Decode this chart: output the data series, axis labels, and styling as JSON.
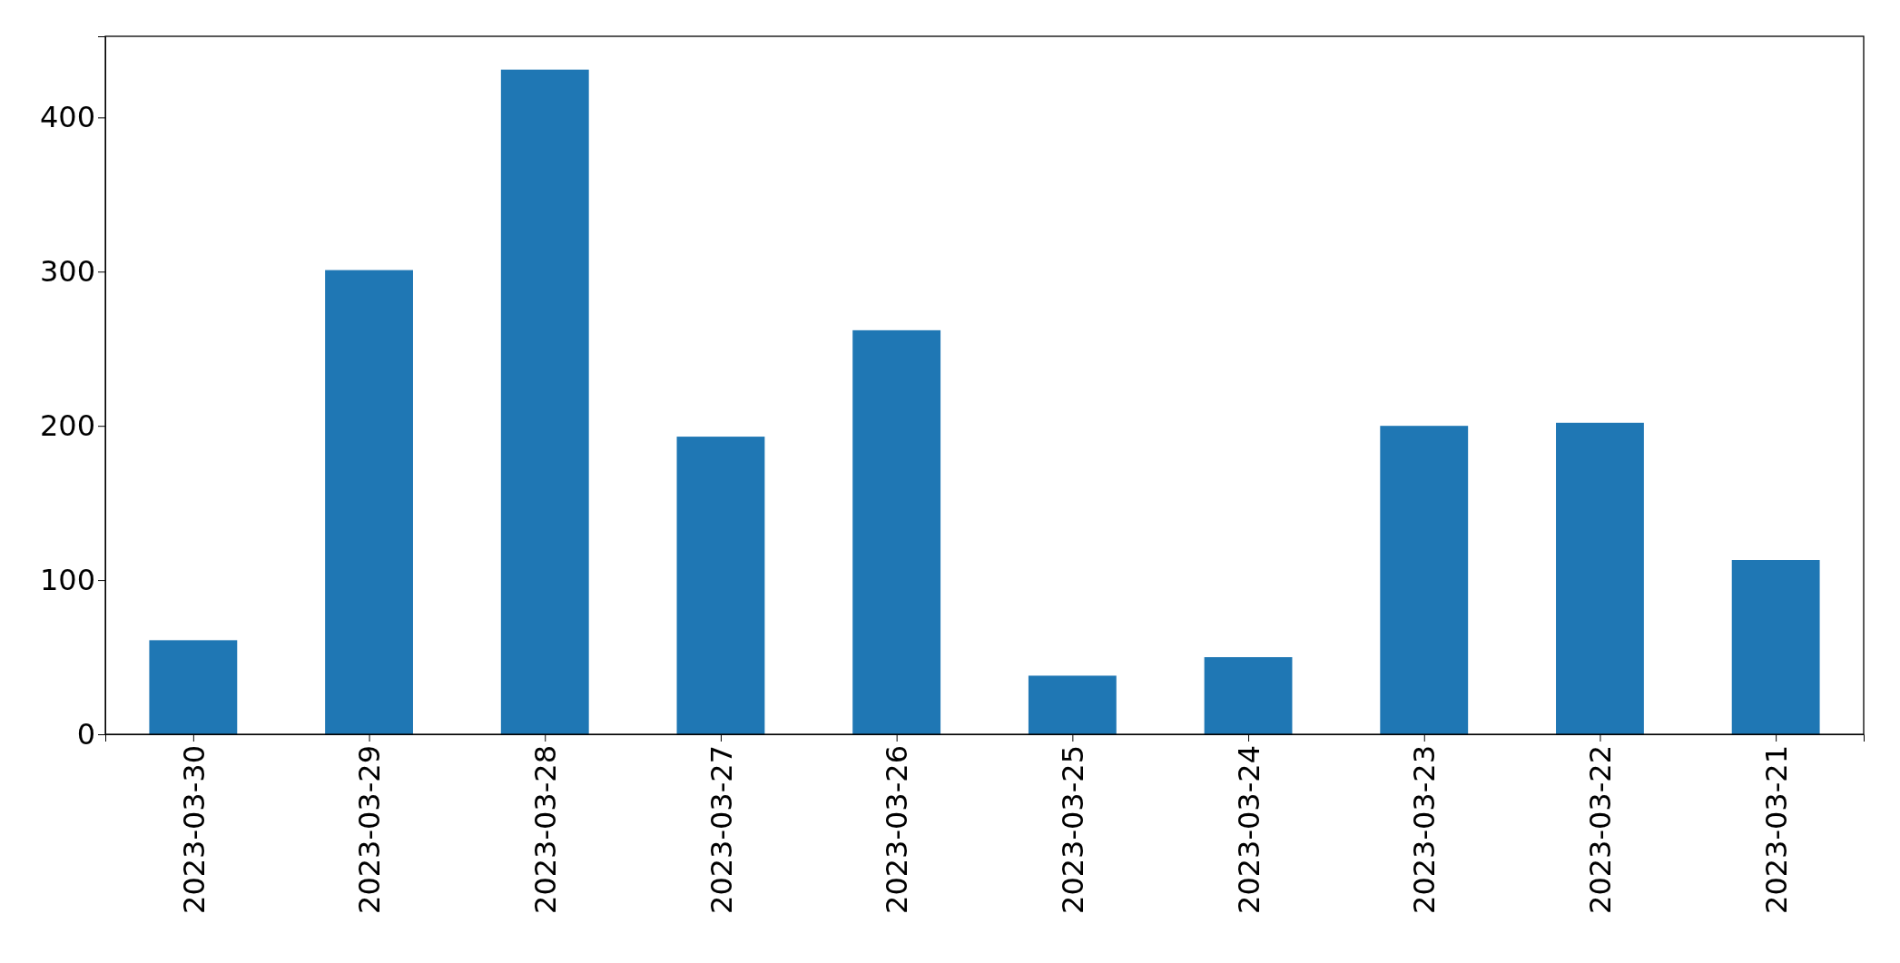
{
  "chart_data": {
    "type": "bar",
    "categories": [
      "2023-03-30",
      "2023-03-29",
      "2023-03-28",
      "2023-03-27",
      "2023-03-26",
      "2023-03-25",
      "2023-03-24",
      "2023-03-23",
      "2023-03-22",
      "2023-03-21"
    ],
    "values": [
      61,
      301,
      431,
      193,
      262,
      38,
      50,
      200,
      202,
      113
    ],
    "color": "#1f77b4",
    "ylim": [
      0,
      452.6
    ],
    "yticks": [
      0,
      100,
      200,
      300,
      400
    ],
    "grid": false
  }
}
